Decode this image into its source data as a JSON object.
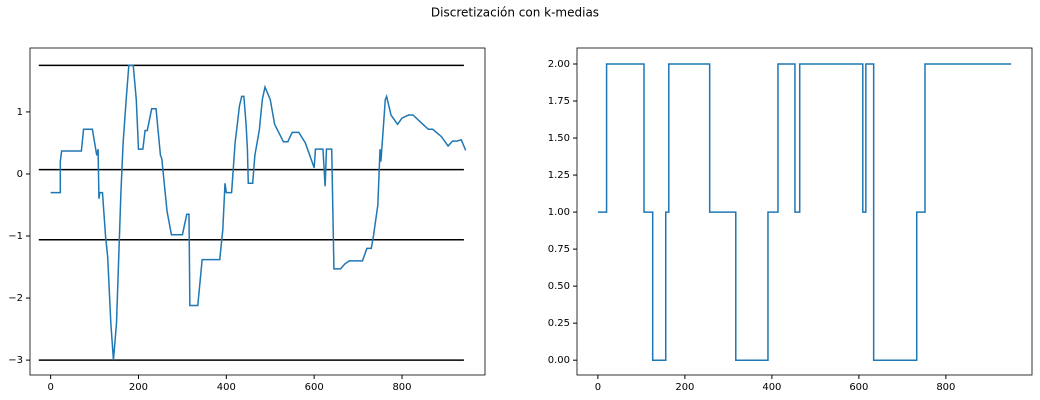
{
  "title": "Discretización con k-medias",
  "chart_data": [
    {
      "type": "line",
      "xlim": [
        -47,
        989
      ],
      "ylim": [
        -3.24,
        2.03
      ],
      "xticks": [
        0,
        200,
        400,
        600,
        800
      ],
      "yticks": [
        {
          "value": -3,
          "label": "−3"
        },
        {
          "value": -2,
          "label": "−2"
        },
        {
          "value": -1,
          "label": "−1"
        },
        0,
        1
      ],
      "hlines": {
        "values": [
          1.75,
          0.07,
          -1.06,
          -3.0
        ],
        "color": "#000000",
        "xrange": [
          -27,
          941
        ]
      },
      "series": [
        {
          "color": "#1f77b4",
          "x": [
            0,
            20,
            22,
            22,
            25,
            70,
            75,
            95,
            105,
            108,
            110,
            112,
            118,
            125,
            130,
            137,
            143,
            150,
            160,
            165,
            172,
            178,
            188,
            195,
            200,
            210,
            215,
            220,
            230,
            240,
            250,
            253,
            265,
            275,
            300,
            310,
            315,
            317,
            335,
            345,
            385,
            392,
            397,
            400,
            412,
            420,
            430,
            435,
            440,
            445,
            448,
            450,
            460,
            465,
            475,
            482,
            488,
            500,
            510,
            530,
            540,
            550,
            565,
            580,
            600,
            603,
            620,
            625,
            628,
            640,
            645,
            660,
            670,
            680,
            710,
            720,
            730,
            735,
            745,
            750,
            752,
            758,
            762,
            765,
            775,
            790,
            800,
            815,
            825,
            840,
            860,
            870,
            890,
            905,
            915,
            925,
            935,
            945
          ],
          "values": [
            -0.3,
            -0.3,
            -0.3,
            0.2,
            0.37,
            0.37,
            0.72,
            0.72,
            0.3,
            0.4,
            -0.4,
            -0.3,
            -0.3,
            -1.0,
            -1.35,
            -2.4,
            -3.0,
            -2.4,
            -0.3,
            0.5,
            1.2,
            1.75,
            1.75,
            1.2,
            0.4,
            0.4,
            0.7,
            0.7,
            1.05,
            1.05,
            0.3,
            0.25,
            -0.6,
            -0.98,
            -0.98,
            -0.65,
            -0.65,
            -2.12,
            -2.12,
            -1.38,
            -1.38,
            -0.9,
            -0.15,
            -0.3,
            -0.3,
            0.5,
            1.1,
            1.25,
            1.25,
            0.8,
            0.4,
            -0.15,
            -0.15,
            0.3,
            0.7,
            1.2,
            1.4,
            1.2,
            0.8,
            0.52,
            0.52,
            0.67,
            0.67,
            0.5,
            0.1,
            0.4,
            0.4,
            -0.2,
            0.4,
            0.4,
            -1.53,
            -1.53,
            -1.45,
            -1.4,
            -1.4,
            -1.2,
            -1.2,
            -1.0,
            -0.5,
            0.4,
            0.2,
            0.8,
            1.2,
            1.25,
            0.95,
            0.8,
            0.9,
            0.95,
            0.95,
            0.85,
            0.72,
            0.72,
            0.6,
            0.45,
            0.53,
            0.53,
            0.55,
            0.38
          ]
        }
      ]
    },
    {
      "type": "line",
      "xlim": [
        -48,
        998
      ],
      "ylim": [
        -0.1,
        2.108
      ],
      "xticks": [
        0,
        200,
        400,
        600,
        800
      ],
      "yticks": [
        {
          "value": 0,
          "label": "0.00"
        },
        {
          "value": 0.25,
          "label": "0.25"
        },
        {
          "value": 0.5,
          "label": "0.50"
        },
        {
          "value": 0.75,
          "label": "0.75"
        },
        {
          "value": 1,
          "label": "1.00"
        },
        {
          "value": 1.25,
          "label": "1.25"
        },
        {
          "value": 1.5,
          "label": "1.50"
        },
        {
          "value": 1.75,
          "label": "1.75"
        },
        {
          "value": 2,
          "label": "2.00"
        }
      ],
      "series": [
        {
          "color": "#1f77b4",
          "x": [
            0,
            20,
            20,
            106,
            106,
            126,
            126,
            156,
            156,
            163,
            163,
            257,
            257,
            317,
            317,
            391,
            391,
            414,
            414,
            453,
            453,
            464,
            464,
            609,
            609,
            616,
            616,
            634,
            634,
            733,
            733,
            752,
            752,
            950
          ],
          "values": [
            1,
            1,
            2,
            2,
            1,
            1,
            0,
            0,
            1,
            1,
            2,
            2,
            1,
            1,
            0,
            0,
            1,
            1,
            2,
            2,
            1,
            1,
            2,
            2,
            1,
            1,
            2,
            2,
            0,
            0,
            1,
            1,
            2,
            2
          ]
        }
      ]
    }
  ]
}
